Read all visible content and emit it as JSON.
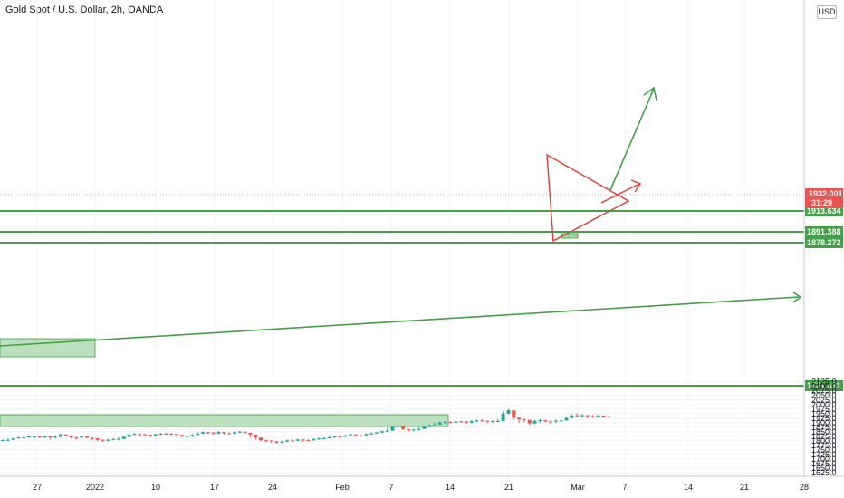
{
  "header": {
    "title": "Gold Spot / U.S. Dollar, 2h, OANDA",
    "currency": "USD"
  },
  "colors": {
    "up": "#26a69a",
    "down": "#ef5350",
    "level": "#43a047",
    "triangle": "#e53935",
    "zone": "#a5d6a7",
    "price_badge": "#ef5350",
    "level_badge": "#43a047",
    "grid": "#f0f3fa",
    "axis": "#131722"
  },
  "chart_data": {
    "type": "candlestick",
    "symbol": "XAUUSD",
    "interval": "2h",
    "x_ticks": [
      "27",
      "2022",
      "10",
      "17",
      "24",
      "Feb",
      "7",
      "14",
      "21",
      "Mar",
      "7",
      "14",
      "21",
      "28"
    ],
    "y_ticks": [
      1625,
      1650,
      1675,
      1700,
      1725,
      1750,
      1775,
      1800,
      1825,
      1850,
      1875,
      1900,
      1925,
      1950,
      1975,
      2000,
      2025,
      2050,
      2075,
      2100,
      2125
    ],
    "ylim": [
      1620,
      2135
    ],
    "grid": true,
    "current_price": {
      "label": "1932.001",
      "countdown": "31:29"
    },
    "levels": [
      {
        "label": "1913.634"
      },
      {
        "label": "1891.388"
      },
      {
        "label": "1878.272"
      },
      {
        "label": "1721.431"
      }
    ],
    "price_path": [
      [
        1800,
        1806
      ],
      [
        1803,
        1812
      ],
      [
        1808,
        1815
      ],
      [
        1815,
        1820
      ],
      [
        1818,
        1822
      ],
      [
        1820,
        1826
      ],
      [
        1815,
        1828
      ],
      [
        1820,
        1824
      ],
      [
        1818,
        1826
      ],
      [
        1810,
        1822
      ],
      [
        1818,
        1830
      ],
      [
        1830,
        1838
      ],
      [
        1825,
        1832
      ],
      [
        1815,
        1826
      ],
      [
        1812,
        1820
      ],
      [
        1818,
        1826
      ],
      [
        1815,
        1822
      ],
      [
        1805,
        1818
      ],
      [
        1800,
        1808
      ],
      [
        1798,
        1806
      ],
      [
        1802,
        1808
      ],
      [
        1805,
        1812
      ],
      [
        1808,
        1818
      ],
      [
        1815,
        1825
      ],
      [
        1820,
        1840
      ],
      [
        1835,
        1842
      ],
      [
        1828,
        1840
      ],
      [
        1830,
        1836
      ],
      [
        1825,
        1832
      ],
      [
        1830,
        1838
      ],
      [
        1832,
        1842
      ],
      [
        1838,
        1844
      ],
      [
        1832,
        1840
      ],
      [
        1826,
        1836
      ],
      [
        1822,
        1830
      ],
      [
        1820,
        1828
      ],
      [
        1825,
        1835
      ],
      [
        1835,
        1848
      ],
      [
        1842,
        1850
      ],
      [
        1840,
        1848
      ],
      [
        1838,
        1846
      ],
      [
        1840,
        1852
      ],
      [
        1836,
        1844
      ],
      [
        1838,
        1846
      ],
      [
        1840,
        1850
      ],
      [
        1845,
        1852
      ],
      [
        1842,
        1850
      ],
      [
        1820,
        1840
      ],
      [
        1808,
        1822
      ],
      [
        1800,
        1812
      ],
      [
        1795,
        1805
      ],
      [
        1790,
        1800
      ],
      [
        1788,
        1796
      ],
      [
        1790,
        1798
      ],
      [
        1795,
        1805
      ],
      [
        1798,
        1808
      ],
      [
        1800,
        1810
      ],
      [
        1798,
        1806
      ],
      [
        1800,
        1808
      ],
      [
        1805,
        1812
      ],
      [
        1808,
        1815
      ],
      [
        1812,
        1820
      ],
      [
        1815,
        1822
      ],
      [
        1818,
        1826
      ],
      [
        1820,
        1828
      ],
      [
        1825,
        1832
      ],
      [
        1830,
        1838
      ],
      [
        1828,
        1836
      ],
      [
        1825,
        1832
      ],
      [
        1830,
        1840
      ],
      [
        1838,
        1846
      ],
      [
        1840,
        1848
      ],
      [
        1845,
        1855
      ],
      [
        1850,
        1870
      ],
      [
        1865,
        1880
      ],
      [
        1872,
        1885
      ],
      [
        1860,
        1875
      ],
      [
        1850,
        1862
      ],
      [
        1855,
        1865
      ],
      [
        1862,
        1872
      ],
      [
        1868,
        1880
      ],
      [
        1875,
        1890
      ],
      [
        1885,
        1900
      ],
      [
        1890,
        1905
      ],
      [
        1895,
        1908
      ],
      [
        1898,
        1906
      ],
      [
        1900,
        1910
      ],
      [
        1902,
        1908
      ],
      [
        1898,
        1906
      ],
      [
        1900,
        1912
      ],
      [
        1905,
        1915
      ],
      [
        1908,
        1918
      ],
      [
        1900,
        1910
      ],
      [
        1902,
        1912
      ],
      [
        1905,
        1920
      ],
      [
        1920,
        1960
      ],
      [
        1950,
        1974
      ],
      [
        1920,
        1945
      ],
      [
        1900,
        1925
      ],
      [
        1905,
        1920
      ],
      [
        1890,
        1912
      ],
      [
        1895,
        1915
      ],
      [
        1900,
        1918
      ],
      [
        1905,
        1912
      ],
      [
        1895,
        1910
      ],
      [
        1900,
        1915
      ],
      [
        1908,
        1922
      ],
      [
        1915,
        1930
      ],
      [
        1925,
        1945
      ],
      [
        1935,
        1950
      ],
      [
        1930,
        1945
      ],
      [
        1925,
        1940
      ],
      [
        1928,
        1940
      ],
      [
        1930,
        1942
      ],
      [
        1928,
        1938
      ],
      [
        1930,
        1935
      ]
    ]
  }
}
